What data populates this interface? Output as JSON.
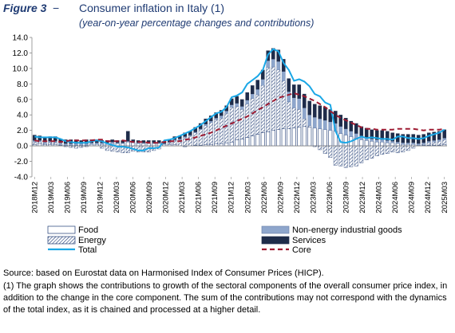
{
  "figure": {
    "label": "Figure 3",
    "dash": "−",
    "title": "Consumer inflation in Italy (1)",
    "subtitle": "(year-on-year percentage changes and contributions)"
  },
  "colors": {
    "food_fill": "#ffffff",
    "food_stroke": "#1f3b73",
    "energy_stroke": "#1f3b73",
    "neig_fill": "#8ea6cc",
    "services_fill": "#1e2c4a",
    "total_line": "#1aa7e6",
    "core_line": "#9e1b32"
  },
  "chart_data": {
    "type": "bar",
    "stacked": true,
    "ylim": [
      -4,
      14
    ],
    "yticks": [
      "14.0",
      "12.0",
      "10.0",
      "8.0",
      "6.0",
      "4.0",
      "2.0",
      "0.0",
      "-2.0",
      "-4.0"
    ],
    "xticks": [
      "2018M12",
      "2019M03",
      "2019M06",
      "2019M09",
      "2019M12",
      "2020M03",
      "2020M06",
      "2020M09",
      "2020M12",
      "2021M03",
      "2021M06",
      "2021M09",
      "2021M12",
      "2022M03",
      "2022M06",
      "2022M09",
      "2022M12",
      "2023M03",
      "2023M06",
      "2023M09",
      "2023M12",
      "2024M03",
      "2024M06",
      "2024M09",
      "2024M12",
      "2025M03"
    ],
    "x_start": "2018M12",
    "x_end": "2025M03",
    "legend_position": "bottom",
    "grid": false,
    "series": [
      {
        "name": "Food",
        "kind": "bar",
        "values": [
          0.2,
          0.3,
          0.2,
          0.2,
          0.2,
          0.1,
          0.1,
          0.1,
          0.1,
          0.1,
          0.1,
          0.2,
          0.2,
          0.2,
          0.2,
          0.3,
          0.3,
          0.3,
          0.5,
          0.4,
          0.3,
          0.3,
          0.3,
          0.3,
          0.3,
          0.2,
          0.2,
          0.2,
          0.0,
          -0.1,
          0.0,
          0.1,
          0.1,
          0.2,
          0.2,
          0.3,
          0.3,
          0.4,
          0.5,
          0.8,
          0.9,
          1.1,
          1.3,
          1.5,
          1.7,
          1.8,
          2.0,
          2.1,
          2.2,
          2.2,
          2.3,
          2.4,
          2.5,
          2.4,
          2.3,
          2.2,
          2.1,
          2.0,
          1.9,
          1.6,
          1.4,
          1.2,
          1.0,
          0.8,
          0.7,
          0.6,
          0.5,
          0.5,
          0.4,
          0.4,
          0.3,
          0.2,
          0.2,
          0.2,
          0.1,
          0.1,
          0.1,
          0.1,
          0.1,
          0.2
        ]
      },
      {
        "name": "Non-energy industrial goods",
        "kind": "bar",
        "values": [
          0.2,
          0.2,
          0.2,
          0.2,
          0.2,
          0.2,
          0.2,
          0.2,
          0.2,
          0.2,
          0.2,
          0.2,
          0.2,
          0.2,
          0.2,
          0.2,
          0.1,
          0.1,
          0.1,
          0.1,
          0.1,
          0.1,
          0.1,
          0.1,
          0.1,
          0.1,
          0.1,
          0.1,
          0.1,
          0.1,
          0.1,
          0.1,
          0.1,
          0.2,
          0.2,
          0.2,
          0.3,
          0.3,
          0.3,
          0.4,
          0.4,
          0.5,
          0.6,
          0.7,
          0.8,
          0.9,
          1.0,
          1.1,
          1.2,
          1.3,
          1.3,
          1.4,
          1.4,
          1.4,
          1.4,
          1.3,
          1.2,
          1.1,
          1.0,
          0.9,
          0.8,
          0.7,
          0.6,
          0.5,
          0.4,
          0.3,
          0.3,
          0.3,
          0.3,
          0.2,
          0.2,
          0.2,
          0.2,
          0.2,
          0.2,
          0.2,
          0.2,
          0.2,
          0.2,
          0.2
        ]
      },
      {
        "name": "Energy",
        "kind": "bar",
        "values": [
          0.3,
          0.2,
          0.1,
          0.2,
          0.2,
          0.1,
          -0.1,
          -0.2,
          -0.3,
          -0.2,
          -0.1,
          0.0,
          0.0,
          -0.3,
          -0.6,
          -0.7,
          -0.8,
          -0.9,
          -0.9,
          -0.7,
          -0.8,
          -0.8,
          -0.8,
          -0.6,
          -0.4,
          0.0,
          0.2,
          0.5,
          0.8,
          1.1,
          1.3,
          1.6,
          2.0,
          2.4,
          2.8,
          3.1,
          3.3,
          3.8,
          4.5,
          4.3,
          3.8,
          4.3,
          4.8,
          5.1,
          6.1,
          8.3,
          8.2,
          7.7,
          6.2,
          3.5,
          2.6,
          2.3,
          1.0,
          0.2,
          -0.1,
          -0.5,
          -1.0,
          -1.5,
          -2.5,
          -2.6,
          -2.8,
          -2.7,
          -2.6,
          -2.2,
          -1.8,
          -1.6,
          -1.3,
          -1.1,
          -1.0,
          -0.8,
          -0.9,
          -0.8,
          -0.6,
          -0.3,
          0.0,
          0.1,
          0.3,
          0.4,
          0.5,
          0.6
        ]
      },
      {
        "name": "Services",
        "kind": "bar",
        "values": [
          0.7,
          0.6,
          0.6,
          0.6,
          0.6,
          0.5,
          0.5,
          0.5,
          0.5,
          0.4,
          0.5,
          0.4,
          0.4,
          0.3,
          0.3,
          0.3,
          0.3,
          0.3,
          1.3,
          0.3,
          0.3,
          0.3,
          0.3,
          0.3,
          0.3,
          0.3,
          0.3,
          0.4,
          0.4,
          0.5,
          0.5,
          0.6,
          0.7,
          0.7,
          0.7,
          0.7,
          0.7,
          0.7,
          0.8,
          0.9,
          0.9,
          1.0,
          1.1,
          1.2,
          1.2,
          1.3,
          1.4,
          1.5,
          1.6,
          1.7,
          1.7,
          1.8,
          1.8,
          1.8,
          1.7,
          1.7,
          1.7,
          1.6,
          1.6,
          1.5,
          1.4,
          1.3,
          1.3,
          1.2,
          1.2,
          1.2,
          1.2,
          1.2,
          1.2,
          1.1,
          1.1,
          1.1,
          1.1,
          1.1,
          1.1,
          1.1,
          1.1,
          1.1,
          1.1,
          1.1
        ]
      },
      {
        "name": "Total",
        "kind": "line",
        "values": [
          1.2,
          1.1,
          1.1,
          1.1,
          1.1,
          0.9,
          0.6,
          0.5,
          0.4,
          0.4,
          0.4,
          0.6,
          0.7,
          0.6,
          0.3,
          0.1,
          -0.1,
          -0.1,
          -0.2,
          -0.4,
          -0.6,
          -0.6,
          -0.3,
          -0.3,
          -0.2,
          0.7,
          0.8,
          1.0,
          1.3,
          1.6,
          1.9,
          2.3,
          2.7,
          3.2,
          3.7,
          4.2,
          4.4,
          5.0,
          6.3,
          6.5,
          6.9,
          8.0,
          8.5,
          9.0,
          9.8,
          11.8,
          12.5,
          12.2,
          10.7,
          9.8,
          8.4,
          8.6,
          8.3,
          7.7,
          6.7,
          6.4,
          5.6,
          5.3,
          1.9,
          0.5,
          0.4,
          0.6,
          0.9,
          1.2,
          1.0,
          1.1,
          1.0,
          0.9,
          0.9,
          0.8,
          1.2,
          1.2,
          1.0,
          1.0,
          0.9,
          1.0,
          1.3,
          1.5,
          1.7,
          2.1
        ]
      },
      {
        "name": "Core",
        "kind": "line",
        "values": [
          0.7,
          0.6,
          0.6,
          0.6,
          0.6,
          0.5,
          0.6,
          0.7,
          0.7,
          0.7,
          0.7,
          0.7,
          0.8,
          0.8,
          0.6,
          0.6,
          0.6,
          0.7,
          0.6,
          0.5,
          0.5,
          0.5,
          0.4,
          0.4,
          0.4,
          0.5,
          0.6,
          0.6,
          0.6,
          0.8,
          0.9,
          1.1,
          1.3,
          1.5,
          1.7,
          2.0,
          2.3,
          2.6,
          2.9,
          3.2,
          3.5,
          3.8,
          4.2,
          4.6,
          5.0,
          5.4,
          5.8,
          6.2,
          6.4,
          6.6,
          6.8,
          6.6,
          6.4,
          6.1,
          5.8,
          5.4,
          5.0,
          4.5,
          4.0,
          3.6,
          3.3,
          3.0,
          2.7,
          2.4,
          2.2,
          2.2,
          2.1,
          2.1,
          2.1,
          2.1,
          2.2,
          2.2,
          2.2,
          2.2,
          2.1,
          2.0,
          2.1,
          2.1,
          2.1,
          2.2
        ]
      }
    ]
  },
  "notes": {
    "source": "Source: based on Eurostat data on Harmonised Index of Consumer Prices (HICP).",
    "footnote": "(1) The graph shows the contributions to growth of the sectoral components of the overall consumer price index, in addition to the change in the core component. The sum of the contributions may not correspond with the dynamics of the total index, as it is chained and processed at a higher detail."
  }
}
